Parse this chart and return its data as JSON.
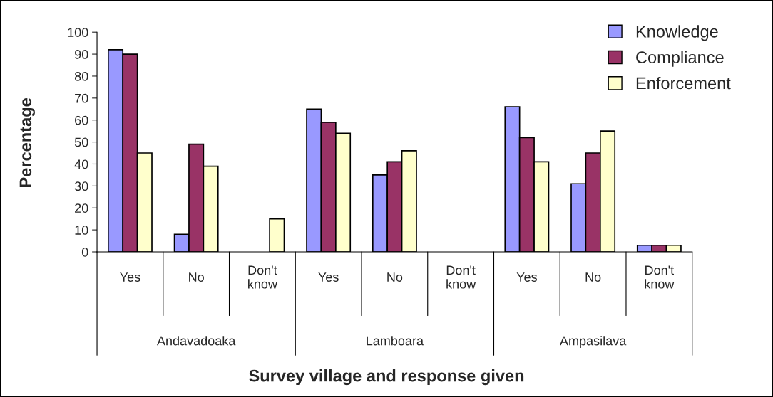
{
  "chart_data": {
    "type": "bar",
    "xlabel": "Survey village and response given",
    "ylabel": "Percentage",
    "categories": [
      "Yes",
      "No",
      "Don't\nknow",
      "Yes",
      "No",
      "Don't\nknow",
      "Yes",
      "No",
      "Don't\nknow"
    ],
    "annotations": [
      "Andavadoaka",
      "Lamboara",
      "Ampasilava"
    ],
    "series": [
      {
        "name": "Knowledge",
        "color": "#9999ff",
        "values": [
          92,
          8,
          0,
          65,
          35,
          0,
          66,
          31,
          3
        ]
      },
      {
        "name": "Compliance",
        "color": "#993366",
        "values": [
          90,
          49,
          0,
          59,
          41,
          0,
          52,
          45,
          3
        ]
      },
      {
        "name": "Enforcement",
        "color": "#ffffcc",
        "values": [
          45,
          39,
          15,
          54,
          46,
          0,
          41,
          55,
          3
        ]
      }
    ],
    "ylim": [
      0,
      100
    ],
    "yticks": [
      0,
      10,
      20,
      30,
      40,
      50,
      60,
      70,
      80,
      90,
      100
    ],
    "grid": false,
    "legend": "top right"
  }
}
